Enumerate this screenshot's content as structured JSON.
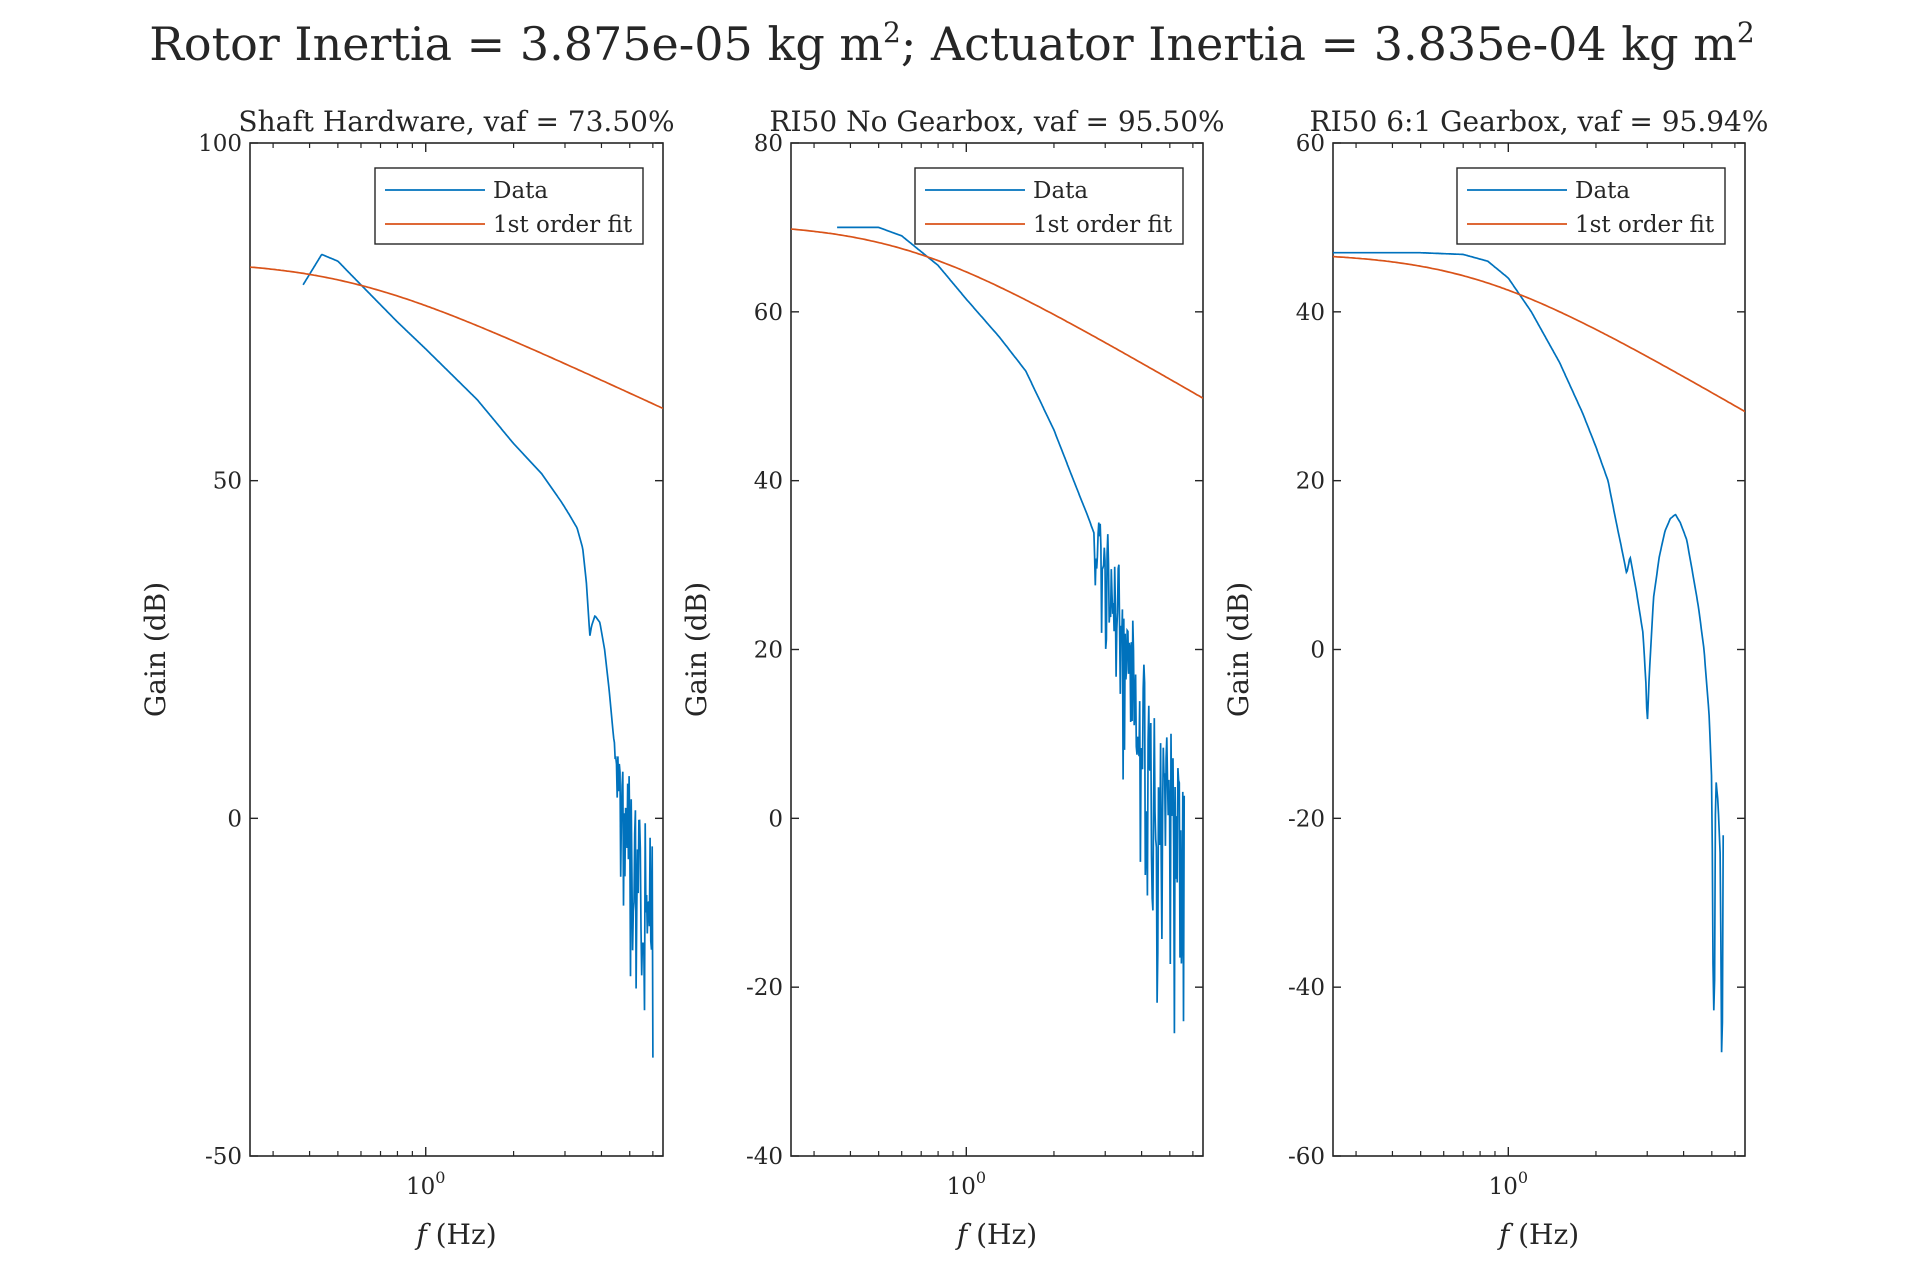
{
  "figure": {
    "suptitle": "Rotor Inertia = 3.875e-05 kg m²; Actuator Inertia = 3.835e-04 kg m²",
    "suptitle_parts": {
      "left": "Rotor Inertia = 3.875e-05 kg m",
      "sup1": "2",
      "mid": "; Actuator Inertia = 3.835e-04 kg m",
      "sup2": "2"
    }
  },
  "colors": {
    "data": "#0072BD",
    "fit": "#D95319",
    "axis": "#262626"
  },
  "chart_data": [
    {
      "type": "line",
      "title": "Shaft Hardware, vaf = 73.50%",
      "xlabel_var": "f",
      "xlabel_unit": "(Hz)",
      "ylabel": "Gain (dB)",
      "x_scale": "log",
      "xlim": [
        0.25,
        6.5
      ],
      "ylim": [
        -50,
        100
      ],
      "yticks": [
        -50,
        0,
        50,
        100
      ],
      "ytick_labels": [
        "-50",
        "0",
        "50",
        "100"
      ],
      "xtick_label_base": "10",
      "xtick_label_exp": "0",
      "legend": [
        "Data",
        "1st order fit"
      ],
      "legend_position": "top-right",
      "fit": {
        "dc_gain_db": 82.5,
        "corner_hz": 0.53,
        "slope_db_per_decade": -20
      },
      "series": [
        {
          "name": "Data",
          "points": [
            [
              0.38,
              79
            ],
            [
              0.44,
              83.5
            ],
            [
              0.5,
              82.5
            ],
            [
              0.6,
              79
            ],
            [
              0.8,
              73.5
            ],
            [
              1.0,
              69.5
            ],
            [
              1.5,
              62
            ],
            [
              2.0,
              55.5
            ],
            [
              2.5,
              51
            ],
            [
              2.9,
              47
            ],
            [
              3.0,
              46
            ],
            [
              3.1,
              45
            ],
            [
              3.3,
              43
            ],
            [
              3.45,
              40
            ],
            [
              3.55,
              35
            ],
            [
              3.6,
              31
            ],
            [
              3.65,
              27
            ],
            [
              3.7,
              28.5
            ],
            [
              3.8,
              30
            ],
            [
              3.95,
              29
            ],
            [
              4.1,
              25
            ],
            [
              4.25,
              19
            ],
            [
              4.4,
              12
            ],
            [
              4.55,
              8
            ],
            [
              4.7,
              3
            ],
            [
              4.85,
              0
            ],
            [
              5.0,
              -2
            ],
            [
              5.2,
              -5
            ],
            [
              5.4,
              -9
            ],
            [
              5.6,
              -12
            ],
            [
              5.8,
              -14
            ],
            [
              6.0,
              -15
            ]
          ],
          "noise": {
            "start_hz": 4.45,
            "end_hz": 6.0,
            "amplitude_db": 17,
            "min_db": -48
          }
        },
        {
          "name": "1st order fit",
          "points": []
        }
      ]
    },
    {
      "type": "line",
      "title": "RI50 No Gearbox, vaf = 95.50%",
      "xlabel_var": "f",
      "xlabel_unit": "(Hz)",
      "ylabel": "Gain (dB)",
      "x_scale": "log",
      "xlim": [
        0.25,
        6.5
      ],
      "ylim": [
        -40,
        80
      ],
      "yticks": [
        -40,
        -20,
        0,
        20,
        40,
        60,
        80
      ],
      "ytick_labels": [
        "-40",
        "-20",
        "0",
        "20",
        "40",
        "60",
        "80"
      ],
      "xtick_label_base": "10",
      "xtick_label_exp": "0",
      "legend": [
        "Data",
        "1st order fit"
      ],
      "legend_position": "top-right",
      "fit": {
        "dc_gain_db": 70.5,
        "corner_hz": 0.6,
        "slope_db_per_decade": -20
      },
      "series": [
        {
          "name": "Data",
          "points": [
            [
              0.36,
              70
            ],
            [
              0.4,
              70
            ],
            [
              0.5,
              70
            ],
            [
              0.6,
              69
            ],
            [
              0.8,
              65.5
            ],
            [
              1.0,
              61.5
            ],
            [
              1.3,
              57
            ],
            [
              1.6,
              53
            ],
            [
              2.0,
              46
            ],
            [
              2.4,
              39
            ],
            [
              2.6,
              36
            ],
            [
              2.8,
              33
            ],
            [
              3.0,
              29
            ],
            [
              3.3,
              25
            ],
            [
              3.6,
              18
            ],
            [
              3.9,
              12
            ],
            [
              4.2,
              6
            ],
            [
              4.5,
              3
            ],
            [
              4.8,
              1
            ],
            [
              5.1,
              0
            ],
            [
              5.4,
              -1
            ],
            [
              5.6,
              -2
            ]
          ],
          "noise": {
            "start_hz": 2.75,
            "end_hz": 5.65,
            "amplitude_db": 16,
            "min_db": -37
          }
        },
        {
          "name": "1st order fit",
          "points": []
        }
      ]
    },
    {
      "type": "line",
      "title": "RI50 6:1 Gearbox, vaf = 95.94%",
      "xlabel_var": "f",
      "xlabel_unit": "(Hz)",
      "ylabel": "Gain (dB)",
      "x_scale": "log",
      "xlim": [
        0.25,
        6.5
      ],
      "ylim": [
        -60,
        60
      ],
      "yticks": [
        -60,
        -40,
        -20,
        0,
        20,
        40,
        60
      ],
      "ytick_labels": [
        "-60",
        "-40",
        "-20",
        "0",
        "20",
        "40",
        "60"
      ],
      "xtick_label_base": "10",
      "xtick_label_exp": "0",
      "legend": [
        "Data",
        "1st order fit"
      ],
      "legend_position": "top-right",
      "fit": {
        "dc_gain_db": 47,
        "corner_hz": 0.75,
        "slope_db_per_decade": -20
      },
      "series": [
        {
          "name": "Data",
          "points": [
            [
              0.25,
              47
            ],
            [
              0.5,
              47
            ],
            [
              0.7,
              46.8
            ],
            [
              0.85,
              46
            ],
            [
              1.0,
              44
            ],
            [
              1.2,
              40
            ],
            [
              1.5,
              34
            ],
            [
              1.8,
              28
            ],
            [
              2.0,
              24
            ],
            [
              2.2,
              20
            ],
            [
              2.35,
              15
            ],
            [
              2.45,
              12
            ],
            [
              2.55,
              9
            ],
            [
              2.62,
              11
            ],
            [
              2.75,
              7
            ],
            [
              2.9,
              2
            ],
            [
              2.97,
              -4
            ],
            [
              3.0,
              -9
            ],
            [
              3.05,
              -3
            ],
            [
              3.15,
              6
            ],
            [
              3.3,
              11
            ],
            [
              3.45,
              14
            ],
            [
              3.6,
              15.5
            ],
            [
              3.75,
              16
            ],
            [
              3.9,
              15
            ],
            [
              4.1,
              13
            ],
            [
              4.3,
              9
            ],
            [
              4.5,
              5
            ],
            [
              4.7,
              0
            ],
            [
              4.9,
              -8
            ],
            [
              5.0,
              -16
            ],
            [
              5.05,
              -38
            ],
            [
              5.1,
              -46
            ],
            [
              5.15,
              -15
            ],
            [
              5.25,
              -18
            ],
            [
              5.35,
              -25
            ],
            [
              5.42,
              -55
            ],
            [
              5.47,
              -22
            ]
          ],
          "noise": null
        },
        {
          "name": "1st order fit",
          "points": []
        }
      ]
    }
  ]
}
